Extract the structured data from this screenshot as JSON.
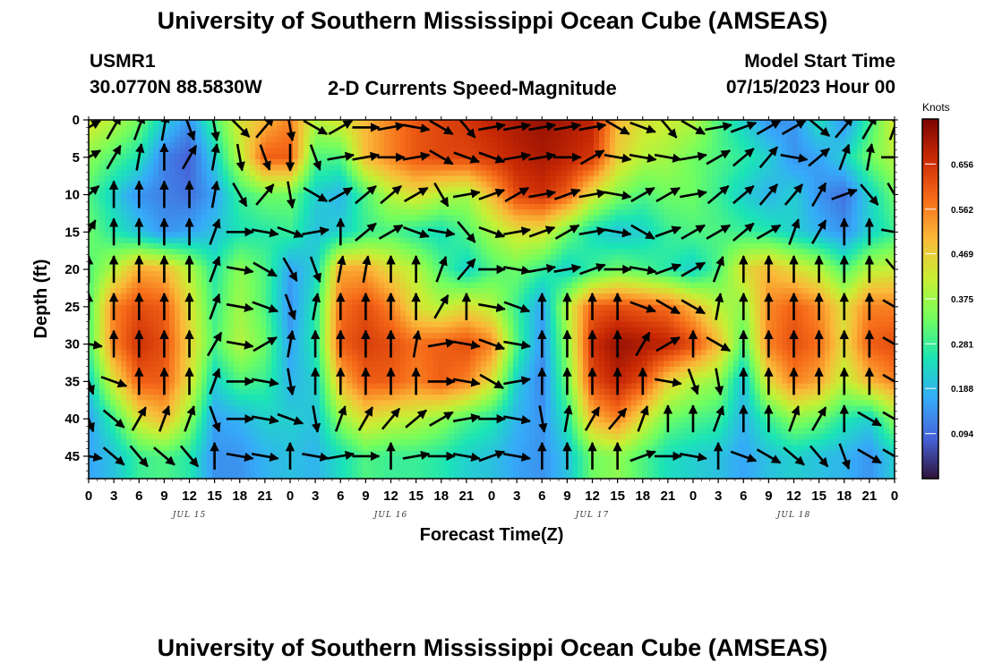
{
  "header": {
    "title": "University of Southern Mississippi Ocean Cube (AMSEAS)",
    "station": "USMR1",
    "coords": "30.0770N  88.5830W",
    "subtitle": "2-D Currents Speed-Magnitude",
    "model_start_label": "Model Start Time",
    "model_start_value": "07/15/2023 Hour 00"
  },
  "footer": {
    "title": "University of Southern Mississippi Ocean Cube (AMSEAS)"
  },
  "chart_data": {
    "type": "heatmap",
    "title": "2-D Currents Speed-Magnitude",
    "xlabel": "Forecast Time(Z)",
    "ylabel": "Depth (ft)",
    "x_tick_labels": [
      "0",
      "3",
      "6",
      "9",
      "12",
      "15",
      "18",
      "21",
      "0",
      "3",
      "6",
      "9",
      "12",
      "15",
      "18",
      "21",
      "0",
      "3",
      "6",
      "9",
      "12",
      "15",
      "18",
      "21",
      "0",
      "3",
      "6",
      "9",
      "12",
      "15",
      "18",
      "21",
      "0"
    ],
    "x_range_hours": [
      0,
      96
    ],
    "day_labels": [
      {
        "label": "JUL 15",
        "hour": 12
      },
      {
        "label": "JUL 16",
        "hour": 36
      },
      {
        "label": "JUL 17",
        "hour": 60
      },
      {
        "label": "JUL 18",
        "hour": 84
      }
    ],
    "y_ticks": [
      0,
      5,
      10,
      15,
      20,
      25,
      30,
      35,
      40,
      45
    ],
    "y_range": [
      0,
      48
    ],
    "y_inverted": true,
    "colorbar": {
      "unit": "Knots",
      "range": [
        0.0,
        0.75
      ],
      "ticks": [
        "0.656",
        "0.562",
        "0.469",
        "0.375",
        "0.281",
        "0.188",
        "0.094"
      ],
      "colors": [
        "#30123b",
        "#4662d8",
        "#36aaf9",
        "#1ae4b6",
        "#72fe5e",
        "#c8ef34",
        "#faba39",
        "#f66b19",
        "#ca2a04",
        "#7a0403"
      ]
    },
    "speed_rows_depths": [
      0,
      5,
      10,
      15,
      20,
      25,
      30,
      35,
      40,
      45
    ],
    "speed_cols_hours": [
      0,
      3,
      6,
      9,
      12,
      15,
      18,
      21,
      24,
      27,
      30,
      33,
      36,
      39,
      42,
      45,
      48,
      51,
      54,
      57,
      60,
      63,
      66,
      69,
      72,
      75,
      78,
      81,
      84,
      87,
      90,
      93,
      96
    ],
    "speed": [
      [
        0.44,
        0.4,
        0.33,
        0.22,
        0.14,
        0.3,
        0.44,
        0.5,
        0.56,
        0.4,
        0.44,
        0.5,
        0.56,
        0.61,
        0.63,
        0.65,
        0.68,
        0.7,
        0.72,
        0.7,
        0.68,
        0.5,
        0.44,
        0.42,
        0.4,
        0.3,
        0.22,
        0.14,
        0.14,
        0.25,
        0.14,
        0.28,
        0.44
      ],
      [
        0.36,
        0.3,
        0.25,
        0.12,
        0.08,
        0.22,
        0.4,
        0.6,
        0.6,
        0.3,
        0.3,
        0.5,
        0.56,
        0.61,
        0.63,
        0.63,
        0.65,
        0.68,
        0.7,
        0.68,
        0.65,
        0.47,
        0.4,
        0.38,
        0.33,
        0.3,
        0.27,
        0.22,
        0.14,
        0.16,
        0.22,
        0.33,
        0.4
      ],
      [
        0.3,
        0.22,
        0.14,
        0.12,
        0.1,
        0.16,
        0.28,
        0.33,
        0.33,
        0.22,
        0.18,
        0.3,
        0.4,
        0.45,
        0.4,
        0.38,
        0.5,
        0.63,
        0.66,
        0.6,
        0.44,
        0.35,
        0.3,
        0.33,
        0.33,
        0.28,
        0.22,
        0.18,
        0.22,
        0.14,
        0.1,
        0.22,
        0.33
      ],
      [
        0.33,
        0.26,
        0.2,
        0.14,
        0.16,
        0.2,
        0.25,
        0.26,
        0.28,
        0.2,
        0.22,
        0.28,
        0.3,
        0.26,
        0.24,
        0.3,
        0.38,
        0.44,
        0.44,
        0.33,
        0.24,
        0.2,
        0.22,
        0.28,
        0.3,
        0.3,
        0.28,
        0.26,
        0.22,
        0.18,
        0.14,
        0.22,
        0.28
      ],
      [
        0.3,
        0.4,
        0.52,
        0.5,
        0.4,
        0.26,
        0.36,
        0.3,
        0.16,
        0.22,
        0.52,
        0.52,
        0.45,
        0.4,
        0.3,
        0.22,
        0.3,
        0.33,
        0.28,
        0.22,
        0.28,
        0.33,
        0.3,
        0.26,
        0.22,
        0.3,
        0.45,
        0.5,
        0.45,
        0.4,
        0.3,
        0.4,
        0.42
      ],
      [
        0.3,
        0.56,
        0.62,
        0.6,
        0.45,
        0.28,
        0.38,
        0.3,
        0.14,
        0.26,
        0.58,
        0.62,
        0.56,
        0.44,
        0.4,
        0.45,
        0.4,
        0.28,
        0.16,
        0.4,
        0.6,
        0.62,
        0.6,
        0.58,
        0.5,
        0.4,
        0.36,
        0.55,
        0.6,
        0.55,
        0.44,
        0.56,
        0.56
      ],
      [
        0.3,
        0.56,
        0.66,
        0.62,
        0.47,
        0.3,
        0.4,
        0.33,
        0.16,
        0.26,
        0.6,
        0.64,
        0.62,
        0.58,
        0.6,
        0.62,
        0.56,
        0.3,
        0.14,
        0.36,
        0.66,
        0.72,
        0.7,
        0.68,
        0.62,
        0.5,
        0.3,
        0.56,
        0.62,
        0.58,
        0.45,
        0.6,
        0.62
      ],
      [
        0.22,
        0.44,
        0.6,
        0.6,
        0.45,
        0.22,
        0.3,
        0.28,
        0.18,
        0.22,
        0.5,
        0.6,
        0.6,
        0.56,
        0.6,
        0.56,
        0.44,
        0.22,
        0.12,
        0.33,
        0.62,
        0.68,
        0.62,
        0.47,
        0.4,
        0.36,
        0.2,
        0.45,
        0.56,
        0.52,
        0.4,
        0.5,
        0.56
      ],
      [
        0.16,
        0.28,
        0.44,
        0.5,
        0.36,
        0.16,
        0.18,
        0.22,
        0.22,
        0.2,
        0.36,
        0.45,
        0.42,
        0.4,
        0.36,
        0.3,
        0.26,
        0.18,
        0.14,
        0.26,
        0.5,
        0.56,
        0.44,
        0.33,
        0.3,
        0.28,
        0.18,
        0.28,
        0.36,
        0.33,
        0.26,
        0.22,
        0.36
      ],
      [
        0.16,
        0.2,
        0.28,
        0.3,
        0.26,
        0.14,
        0.14,
        0.18,
        0.2,
        0.18,
        0.24,
        0.3,
        0.28,
        0.28,
        0.26,
        0.22,
        0.2,
        0.16,
        0.14,
        0.2,
        0.33,
        0.36,
        0.3,
        0.24,
        0.22,
        0.2,
        0.16,
        0.2,
        0.22,
        0.2,
        0.18,
        0.14,
        0.22
      ]
    ],
    "arrow_rows_depths": [
      1,
      5,
      10,
      15,
      20,
      25,
      30,
      35,
      40,
      45
    ],
    "arrow_directions_deg": [
      [
        60,
        30,
        20,
        10,
        160,
        170,
        135,
        40,
        170,
        120,
        60,
        90,
        80,
        100,
        120,
        140,
        80,
        80,
        80,
        80,
        80,
        120,
        110,
        140,
        120,
        80,
        70,
        60,
        60,
        130,
        40,
        30,
        20
      ],
      [
        60,
        30,
        10,
        0,
        30,
        10,
        170,
        160,
        180,
        160,
        80,
        80,
        90,
        80,
        120,
        110,
        110,
        80,
        80,
        90,
        60,
        100,
        100,
        100,
        80,
        60,
        50,
        40,
        100,
        50,
        20,
        10,
        90
      ],
      [
        50,
        0,
        0,
        0,
        0,
        10,
        150,
        40,
        170,
        120,
        60,
        50,
        50,
        60,
        150,
        80,
        70,
        60,
        80,
        70,
        80,
        100,
        60,
        60,
        80,
        50,
        50,
        40,
        40,
        30,
        70,
        140,
        150
      ],
      [
        30,
        0,
        0,
        0,
        0,
        20,
        90,
        100,
        110,
        80,
        0,
        50,
        60,
        110,
        100,
        140,
        110,
        80,
        70,
        60,
        80,
        100,
        120,
        70,
        60,
        60,
        50,
        60,
        20,
        30,
        0,
        0,
        100
      ],
      [
        0,
        0,
        0,
        0,
        0,
        20,
        100,
        120,
        150,
        160,
        10,
        10,
        0,
        0,
        20,
        40,
        90,
        100,
        80,
        80,
        70,
        90,
        100,
        70,
        60,
        20,
        0,
        0,
        0,
        0,
        0,
        0,
        140
      ],
      [
        0,
        0,
        0,
        0,
        0,
        20,
        100,
        110,
        160,
        10,
        0,
        0,
        0,
        0,
        30,
        0,
        100,
        110,
        0,
        0,
        0,
        0,
        110,
        120,
        120,
        10,
        0,
        0,
        0,
        0,
        0,
        0,
        120
      ],
      [
        100,
        0,
        0,
        0,
        0,
        30,
        100,
        60,
        10,
        0,
        0,
        0,
        0,
        10,
        80,
        100,
        110,
        100,
        0,
        0,
        0,
        0,
        30,
        60,
        0,
        120,
        0,
        0,
        0,
        0,
        0,
        0,
        120
      ],
      [
        160,
        110,
        0,
        0,
        0,
        20,
        90,
        100,
        170,
        0,
        0,
        0,
        0,
        0,
        90,
        100,
        120,
        80,
        0,
        0,
        0,
        0,
        0,
        100,
        160,
        170,
        0,
        0,
        0,
        0,
        0,
        0,
        120
      ],
      [
        160,
        130,
        30,
        20,
        20,
        160,
        90,
        100,
        110,
        170,
        20,
        30,
        40,
        50,
        60,
        80,
        90,
        100,
        170,
        10,
        30,
        40,
        20,
        0,
        0,
        20,
        0,
        0,
        20,
        30,
        0,
        120,
        120
      ],
      [
        100,
        130,
        140,
        130,
        140,
        0,
        100,
        100,
        0,
        100,
        80,
        90,
        0,
        80,
        90,
        100,
        70,
        100,
        0,
        0,
        0,
        0,
        70,
        90,
        100,
        0,
        110,
        120,
        130,
        140,
        160,
        120,
        120
      ]
    ]
  }
}
